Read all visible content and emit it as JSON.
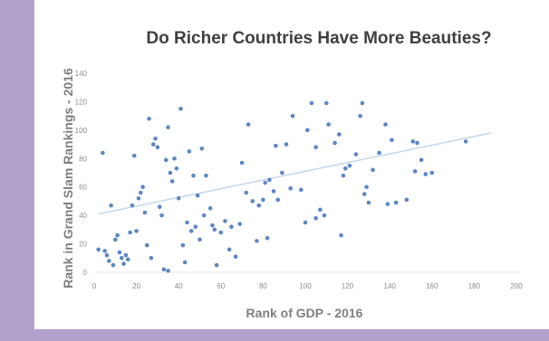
{
  "colors": {
    "frame": "#b2a1cc",
    "points": "#5b87c5",
    "trendline": "#c5d7ea",
    "background": "#ffffff"
  },
  "chart_data": {
    "type": "scatter",
    "title": "Do Richer Countries Have More Beauties?",
    "xlabel": "Rank of GDP - 2016",
    "ylabel": "Rank in Grand Slam Rankings - 2016",
    "xlim": [
      0,
      200
    ],
    "ylim": [
      0,
      140
    ],
    "xticks": [
      0,
      20,
      40,
      60,
      80,
      100,
      120,
      140,
      160,
      180,
      200
    ],
    "yticks": [
      0,
      20,
      40,
      60,
      80,
      100,
      120,
      140
    ],
    "grid": false,
    "legend": "none",
    "trendline": {
      "type": "linear",
      "x": [
        2,
        188
      ],
      "y": [
        41,
        98
      ]
    },
    "points": [
      [
        2,
        16
      ],
      [
        4,
        84
      ],
      [
        5,
        15
      ],
      [
        6,
        12
      ],
      [
        7,
        8
      ],
      [
        8,
        47
      ],
      [
        9,
        5
      ],
      [
        10,
        23
      ],
      [
        11,
        26
      ],
      [
        12,
        14
      ],
      [
        13,
        10
      ],
      [
        14,
        6
      ],
      [
        15,
        12
      ],
      [
        16,
        9
      ],
      [
        17,
        28
      ],
      [
        18,
        47
      ],
      [
        19,
        82
      ],
      [
        20,
        29
      ],
      [
        21,
        52
      ],
      [
        22,
        56
      ],
      [
        23,
        60
      ],
      [
        24,
        42
      ],
      [
        25,
        19
      ],
      [
        26,
        108
      ],
      [
        27,
        10
      ],
      [
        28,
        90
      ],
      [
        29,
        94
      ],
      [
        30,
        88
      ],
      [
        31,
        46
      ],
      [
        32,
        40
      ],
      [
        33,
        2
      ],
      [
        34,
        79
      ],
      [
        35,
        102
      ],
      [
        35,
        1
      ],
      [
        36,
        70
      ],
      [
        37,
        64
      ],
      [
        38,
        80
      ],
      [
        39,
        73
      ],
      [
        40,
        52
      ],
      [
        41,
        115
      ],
      [
        42,
        19
      ],
      [
        43,
        7
      ],
      [
        44,
        35
      ],
      [
        45,
        85
      ],
      [
        46,
        29
      ],
      [
        47,
        68
      ],
      [
        48,
        32
      ],
      [
        49,
        54
      ],
      [
        50,
        23
      ],
      [
        51,
        87
      ],
      [
        52,
        40
      ],
      [
        53,
        68
      ],
      [
        55,
        45
      ],
      [
        56,
        33
      ],
      [
        57,
        30
      ],
      [
        58,
        5
      ],
      [
        60,
        28
      ],
      [
        62,
        36
      ],
      [
        64,
        16
      ],
      [
        65,
        32
      ],
      [
        67,
        11
      ],
      [
        69,
        34
      ],
      [
        70,
        77
      ],
      [
        72,
        56
      ],
      [
        73,
        104
      ],
      [
        75,
        50
      ],
      [
        77,
        22
      ],
      [
        78,
        47
      ],
      [
        80,
        51
      ],
      [
        81,
        63
      ],
      [
        82,
        24
      ],
      [
        83,
        65
      ],
      [
        85,
        57
      ],
      [
        86,
        89
      ],
      [
        87,
        51
      ],
      [
        89,
        70
      ],
      [
        91,
        90
      ],
      [
        93,
        59
      ],
      [
        94,
        110
      ],
      [
        98,
        58
      ],
      [
        100,
        35
      ],
      [
        101,
        100
      ],
      [
        103,
        119
      ],
      [
        105,
        88
      ],
      [
        105,
        38
      ],
      [
        107,
        44
      ],
      [
        109,
        40
      ],
      [
        110,
        119
      ],
      [
        111,
        104
      ],
      [
        114,
        91
      ],
      [
        116,
        97
      ],
      [
        117,
        26
      ],
      [
        118,
        68
      ],
      [
        119,
        73
      ],
      [
        121,
        75
      ],
      [
        124,
        83
      ],
      [
        126,
        110
      ],
      [
        127,
        119
      ],
      [
        128,
        55
      ],
      [
        129,
        60
      ],
      [
        130,
        49
      ],
      [
        132,
        72
      ],
      [
        135,
        84
      ],
      [
        138,
        104
      ],
      [
        139,
        48
      ],
      [
        141,
        93
      ],
      [
        143,
        49
      ],
      [
        148,
        51
      ],
      [
        151,
        92
      ],
      [
        152,
        71
      ],
      [
        153,
        91
      ],
      [
        155,
        79
      ],
      [
        157,
        69
      ],
      [
        160,
        70
      ],
      [
        176,
        92
      ]
    ]
  }
}
